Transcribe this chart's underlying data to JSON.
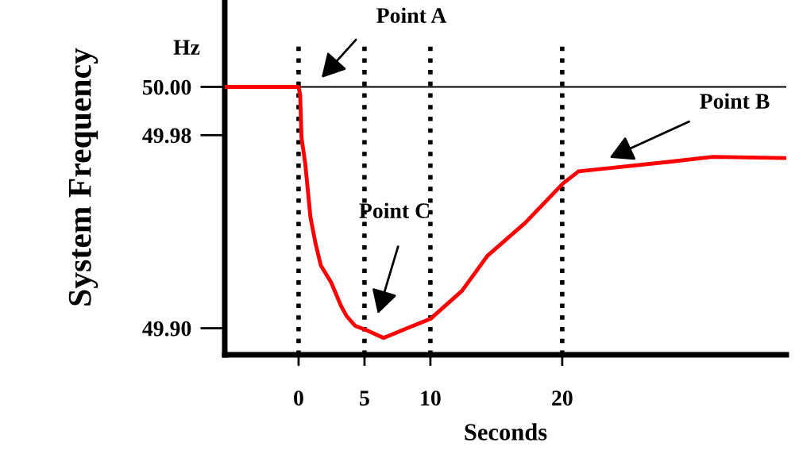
{
  "chart_data": {
    "type": "line",
    "xlabel": "Seconds",
    "ylabel": "System Frequency",
    "x": [
      -5.6,
      0,
      0.12,
      0.22,
      0.51,
      0.9,
      1.29,
      1.69,
      2.47,
      3.24,
      3.65,
      4.29,
      5.22,
      6.45,
      10.03,
      12.4,
      14.32,
      17.2,
      20.06,
      21.24,
      28.18,
      31.41,
      36.9
    ],
    "series": [
      {
        "color": "#ff0000",
        "values": [
          50.0,
          50.0,
          49.9967,
          49.979,
          49.968,
          49.946,
          49.935,
          49.926,
          49.919,
          49.909,
          49.905,
          49.901,
          49.899,
          49.896,
          49.904,
          49.9155,
          49.93,
          49.9437,
          49.96,
          49.965,
          49.969,
          49.971,
          49.9705
        ]
      }
    ],
    "xlim": [
      -5.6,
      37
    ],
    "ylim": [
      49.889,
      50.036
    ],
    "xticks": [
      0,
      5,
      10,
      20
    ],
    "yticks": [
      {
        "value": 50.0,
        "label": "50.00"
      },
      {
        "value": 49.98,
        "label": "49.98"
      },
      {
        "value": 49.9,
        "label": "49.90"
      }
    ],
    "ref_lines": [
      {
        "axis": "y",
        "value": 50.0,
        "color": "#000000",
        "line_style": "solid"
      },
      {
        "axis": "x",
        "value": 0,
        "color": "#000000",
        "line_style": "dotted"
      },
      {
        "axis": "x",
        "value": 5,
        "color": "#000000",
        "line_style": "dotted"
      },
      {
        "axis": "x",
        "value": 10,
        "color": "#000000",
        "line_style": "dotted"
      },
      {
        "axis": "x",
        "value": 20,
        "color": "#000000",
        "line_style": "dotted"
      }
    ],
    "annotations": [
      "Hz",
      "Point A",
      "Point B",
      "Point C"
    ],
    "grid": false,
    "legend": false,
    "marker": "none",
    "line_style": "solid"
  }
}
